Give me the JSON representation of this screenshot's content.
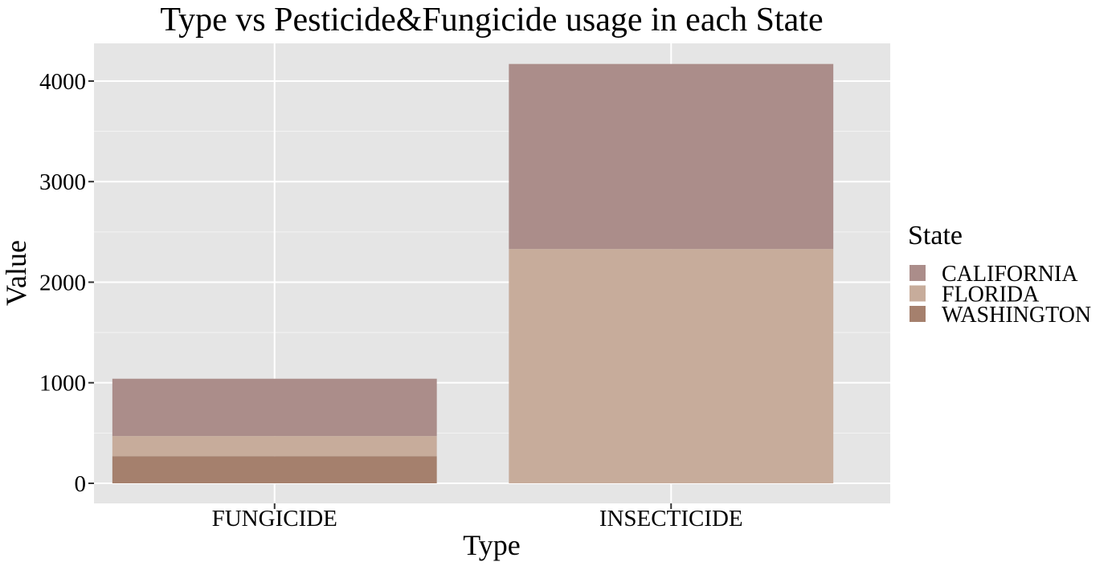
{
  "chart_data": {
    "type": "bar",
    "stacked": true,
    "title": "Type vs Pesticide&Fungicide usage in each State",
    "xlabel": "Type",
    "ylabel": "Value",
    "categories": [
      "FUNGICIDE",
      "INSECTICIDE"
    ],
    "series": [
      {
        "name": "CALIFORNIA",
        "color": "#ab8d8a",
        "values": [
          570,
          1840
        ]
      },
      {
        "name": "FLORIDA",
        "color": "#c7ac9b",
        "values": [
          200,
          2330
        ]
      },
      {
        "name": "WASHINGTON",
        "color": "#a5806d",
        "values": [
          270,
          0
        ]
      }
    ],
    "stack_order_bottom_to_top": [
      "WASHINGTON",
      "FLORIDA",
      "CALIFORNIA"
    ],
    "ylim": [
      -200,
      4380
    ],
    "yticks": [
      0,
      1000,
      2000,
      3000,
      4000
    ],
    "grid": true,
    "panel_background": "#e5e5e5",
    "grid_color": "#ffffff",
    "legend": {
      "title": "State",
      "position": "right",
      "items": [
        "CALIFORNIA",
        "FLORIDA",
        "WASHINGTON"
      ]
    }
  }
}
